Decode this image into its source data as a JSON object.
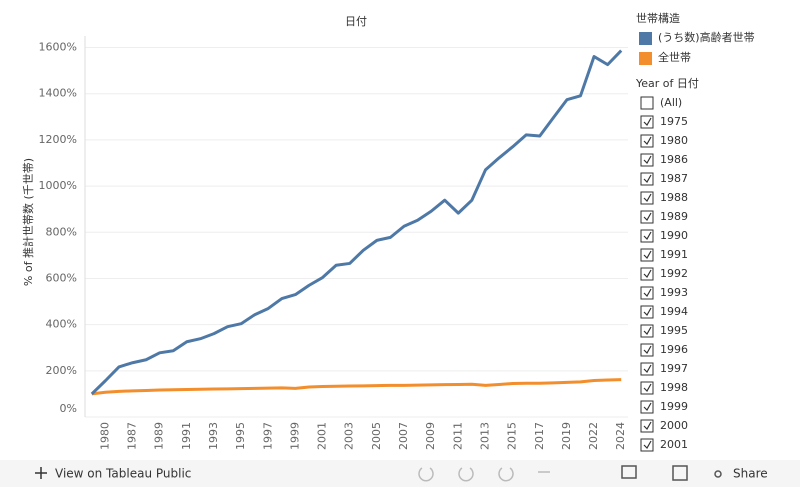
{
  "chart_data": {
    "type": "line",
    "title": "日付",
    "y_label": "% of 推計世帯数 (千世帯)",
    "categories": [
      null,
      "1980",
      null,
      "1987",
      null,
      "1989",
      null,
      "1991",
      null,
      "1993",
      null,
      "1995",
      null,
      "1997",
      null,
      "1999",
      null,
      "2001",
      null,
      "2003",
      null,
      "2005",
      null,
      "2007",
      null,
      "2009",
      null,
      "2011",
      null,
      "2013",
      null,
      "2015",
      null,
      "2017",
      null,
      "2019",
      null,
      "2022",
      null,
      "2024"
    ],
    "series": [
      {
        "name": "(うち数)高齢者世帯",
        "color": "#4e79a7",
        "values": [
          100,
          157,
          217,
          235,
          248,
          278,
          287,
          326,
          339,
          361,
          391,
          404,
          443,
          470,
          513,
          530,
          570,
          604,
          657,
          665,
          722,
          765,
          778,
          826,
          852,
          891,
          939,
          883,
          939,
          1070,
          1122,
          1170,
          1222,
          1217,
          1296,
          1374,
          1391,
          1561,
          1526,
          1587
        ]
      },
      {
        "name": "全世帯",
        "color": "#f28e2b",
        "values": [
          100,
          107,
          111,
          113,
          115,
          117,
          118,
          119,
          120,
          121,
          122,
          123,
          124,
          125,
          126,
          124,
          130,
          132,
          133,
          134,
          135,
          136,
          137,
          137,
          138,
          139,
          140,
          141,
          142,
          137,
          141,
          145,
          146,
          146,
          148,
          150,
          152,
          158,
          160,
          162
        ]
      }
    ],
    "ylim": [
      0,
      1650
    ],
    "yticks": [
      {
        "value": 0,
        "label": "0%"
      },
      {
        "value": 200,
        "label": "200%"
      },
      {
        "value": 400,
        "label": "400%"
      },
      {
        "value": 600,
        "label": "600%"
      },
      {
        "value": 800,
        "label": "800%"
      },
      {
        "value": 1000,
        "label": "1000%"
      },
      {
        "value": 1200,
        "label": "1200%"
      },
      {
        "value": 1400,
        "label": "1400%"
      },
      {
        "value": 1600,
        "label": "1600%"
      }
    ],
    "grid": true,
    "legend_title": "世帯構造"
  },
  "filter": {
    "title": "Year of 日付",
    "items": [
      "(All)",
      "1975",
      "1980",
      "1986",
      "1987",
      "1988",
      "1989",
      "1990",
      "1991",
      "1992",
      "1993",
      "1994",
      "1995",
      "1996",
      "1997",
      "1998",
      "1999",
      "2000",
      "2001"
    ],
    "checked": [
      false,
      true,
      true,
      true,
      true,
      true,
      true,
      true,
      true,
      true,
      true,
      true,
      true,
      true,
      true,
      true,
      true,
      true,
      true
    ]
  },
  "toolbar": {
    "view": "View on Tableau Public",
    "share": "Share"
  }
}
